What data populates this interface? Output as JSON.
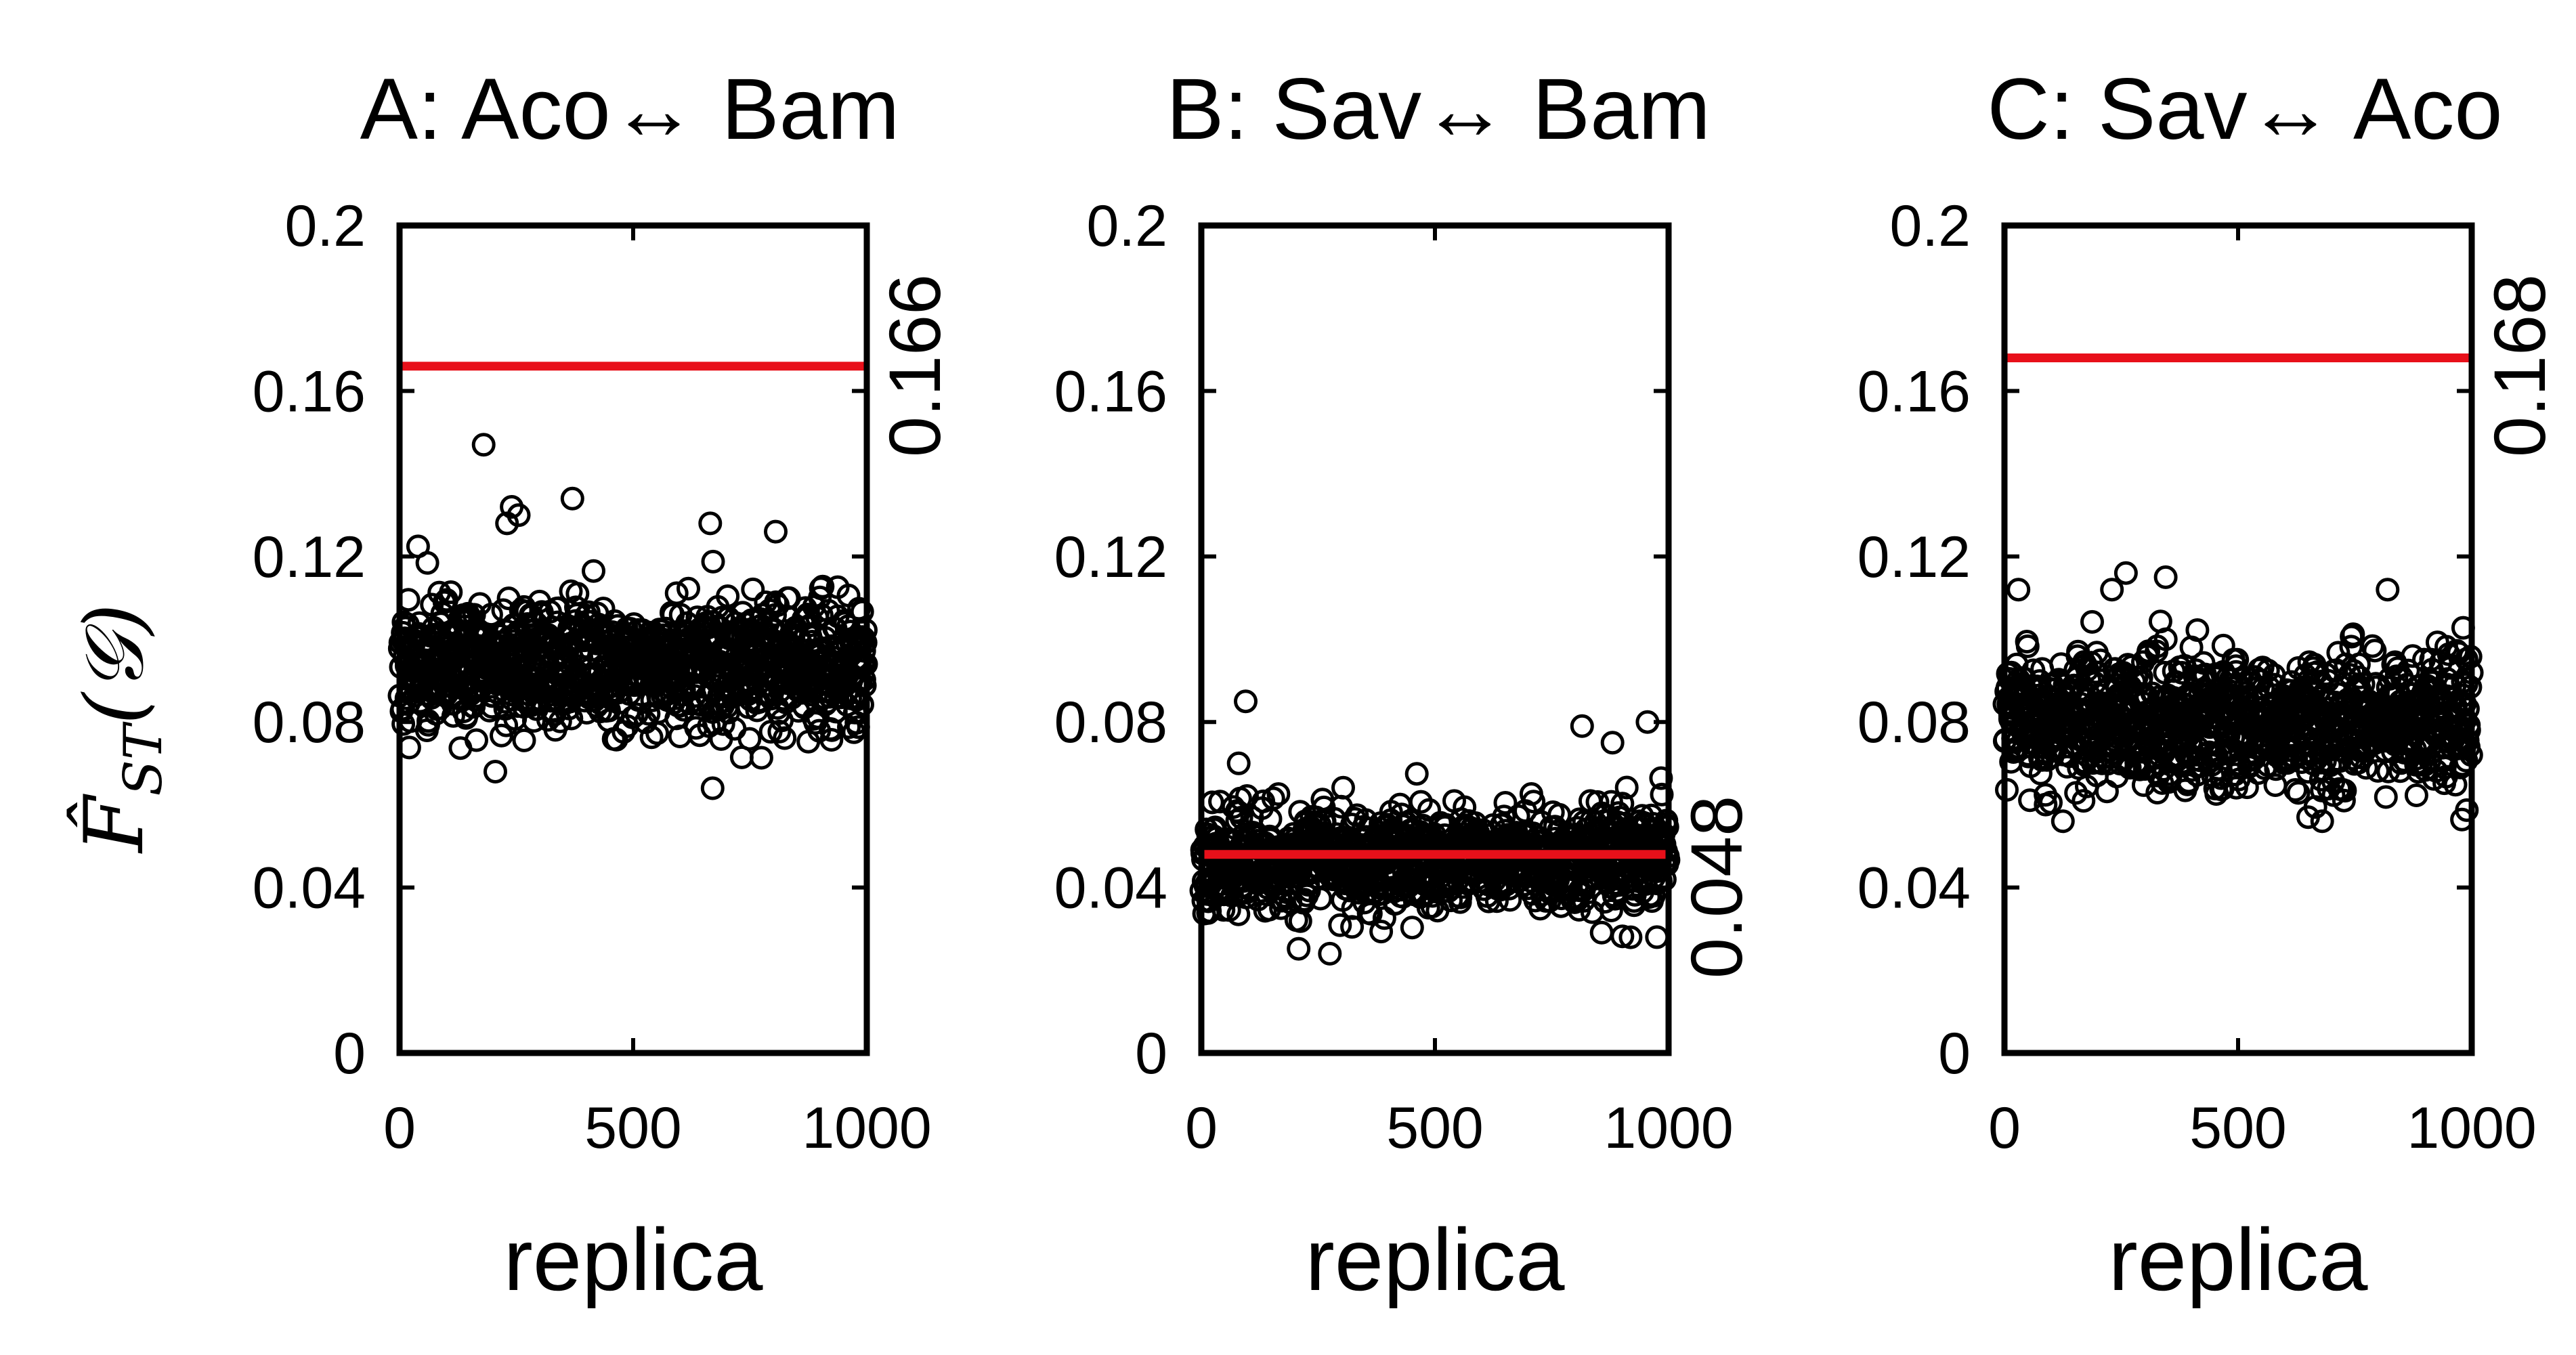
{
  "figure": {
    "ylabel_main": "F̂",
    "ylabel_sub": "ST",
    "ylabel_arg": "(𝒢)"
  },
  "colors": {
    "reference_line": "#e8101a",
    "points": "#000000"
  },
  "chart_data": [
    {
      "type": "scatter",
      "title": "A: Aco↔ Bam",
      "xlabel": "replica",
      "ylabel": "F̂_ST(𝒢)",
      "xlim": [
        0,
        1000
      ],
      "ylim": [
        0,
        0.2
      ],
      "xticks": [
        0,
        500,
        1000
      ],
      "xtick_labels": [
        "0",
        "500",
        "1000"
      ],
      "yticks": [
        0,
        0.04,
        0.08,
        0.12,
        0.16,
        0.2
      ],
      "ytick_labels": [
        "0",
        "0.04",
        "0.08",
        "0.12",
        "0.16",
        "0.2"
      ],
      "reference_value": 0.166,
      "reference_label": "0.166",
      "n_points": 1000,
      "point_mean": 0.094,
      "point_sd": 0.008,
      "point_min": 0.064,
      "point_max": 0.147,
      "seed": 11,
      "outliers": [
        {
          "x": 180,
          "y": 0.147
        },
        {
          "x": 240,
          "y": 0.132
        },
        {
          "x": 255,
          "y": 0.13
        },
        {
          "x": 370,
          "y": 0.134
        },
        {
          "x": 230,
          "y": 0.128
        },
        {
          "x": 665,
          "y": 0.128
        },
        {
          "x": 805,
          "y": 0.126
        },
        {
          "x": 670,
          "y": 0.064
        },
        {
          "x": 205,
          "y": 0.068
        }
      ]
    },
    {
      "type": "scatter",
      "title": "B: Sav↔ Bam",
      "xlabel": "replica",
      "ylabel": "F̂_ST(𝒢)",
      "xlim": [
        0,
        1000
      ],
      "ylim": [
        0,
        0.2
      ],
      "xticks": [
        0,
        500,
        1000
      ],
      "xtick_labels": [
        "0",
        "500",
        "1000"
      ],
      "yticks": [
        0,
        0.04,
        0.08,
        0.12,
        0.16,
        0.2
      ],
      "ytick_labels": [
        "0",
        "0.04",
        "0.08",
        "0.12",
        "0.16",
        "0.2"
      ],
      "reference_value": 0.048,
      "reference_label": "0.048",
      "n_points": 1000,
      "point_mean": 0.047,
      "point_sd": 0.006,
      "point_min": 0.024,
      "point_max": 0.085,
      "seed": 23,
      "outliers": [
        {
          "x": 95,
          "y": 0.085
        },
        {
          "x": 80,
          "y": 0.07
        },
        {
          "x": 815,
          "y": 0.079
        },
        {
          "x": 955,
          "y": 0.08
        },
        {
          "x": 880,
          "y": 0.075
        },
        {
          "x": 275,
          "y": 0.024
        },
        {
          "x": 975,
          "y": 0.028
        }
      ]
    },
    {
      "type": "scatter",
      "title": "C: Sav↔ Aco",
      "xlabel": "replica",
      "ylabel": "F̂_ST(𝒢)",
      "xlim": [
        0,
        1000
      ],
      "ylim": [
        0,
        0.2
      ],
      "xticks": [
        0,
        500,
        1000
      ],
      "xtick_labels": [
        "0",
        "500",
        "1000"
      ],
      "yticks": [
        0,
        0.04,
        0.08,
        0.12,
        0.16,
        0.2
      ],
      "ytick_labels": [
        "0",
        "0.04",
        "0.08",
        "0.12",
        "0.16",
        "0.2"
      ],
      "reference_value": 0.168,
      "reference_label": "0.168",
      "n_points": 1000,
      "point_mean": 0.08,
      "point_sd": 0.008,
      "point_min": 0.055,
      "point_max": 0.116,
      "seed": 37,
      "outliers": [
        {
          "x": 30,
          "y": 0.112
        },
        {
          "x": 260,
          "y": 0.116
        },
        {
          "x": 230,
          "y": 0.112
        },
        {
          "x": 345,
          "y": 0.115
        },
        {
          "x": 820,
          "y": 0.112
        },
        {
          "x": 650,
          "y": 0.057
        },
        {
          "x": 680,
          "y": 0.056
        },
        {
          "x": 125,
          "y": 0.056
        }
      ]
    }
  ]
}
